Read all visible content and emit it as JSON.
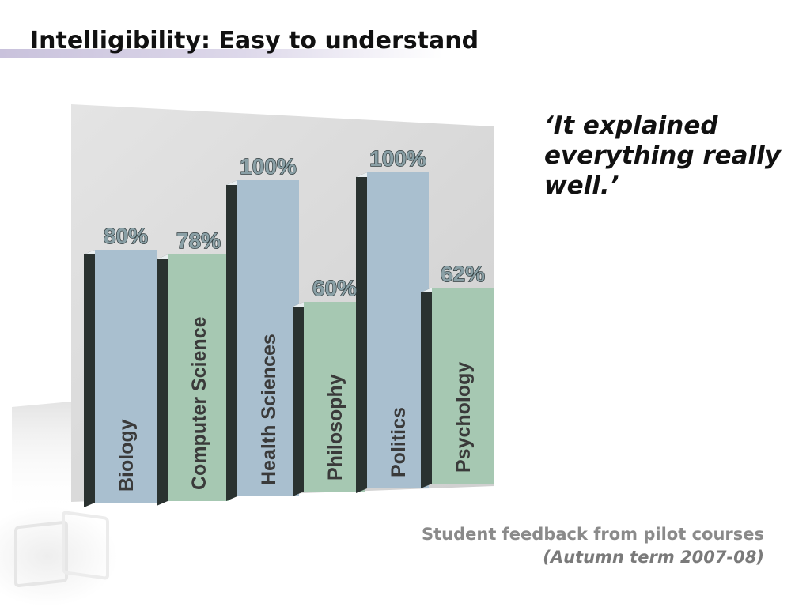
{
  "slide": {
    "title": "Intelligibility: Easy to understand",
    "quote": "‘It explained everything really well.’",
    "caption_line1": "Student feedback from pilot courses",
    "caption_line2": "(Autumn term 2007-08)"
  },
  "colors": {
    "blue_bar": "#a9bfcf",
    "green_bar": "#a6c8b2",
    "bar_side": "#2a3230",
    "backdrop": "#dcdcdc",
    "value_text": "#8aa0a6",
    "title_text": "#111111",
    "caption_text": "#8a8a8a"
  },
  "chart_data": {
    "type": "bar",
    "categories": [
      "Biology",
      "Computer Science",
      "Health Sciences",
      "Philosophy",
      "Politics",
      "Psychology"
    ],
    "values": [
      80,
      78,
      100,
      60,
      100,
      62
    ],
    "value_labels": [
      "80%",
      "78%",
      "100%",
      "60%",
      "100%",
      "62%"
    ],
    "bar_colors": [
      "blue",
      "green",
      "blue",
      "green",
      "blue",
      "green"
    ],
    "ylim": [
      0,
      100
    ],
    "grid": false,
    "legend": "none"
  }
}
